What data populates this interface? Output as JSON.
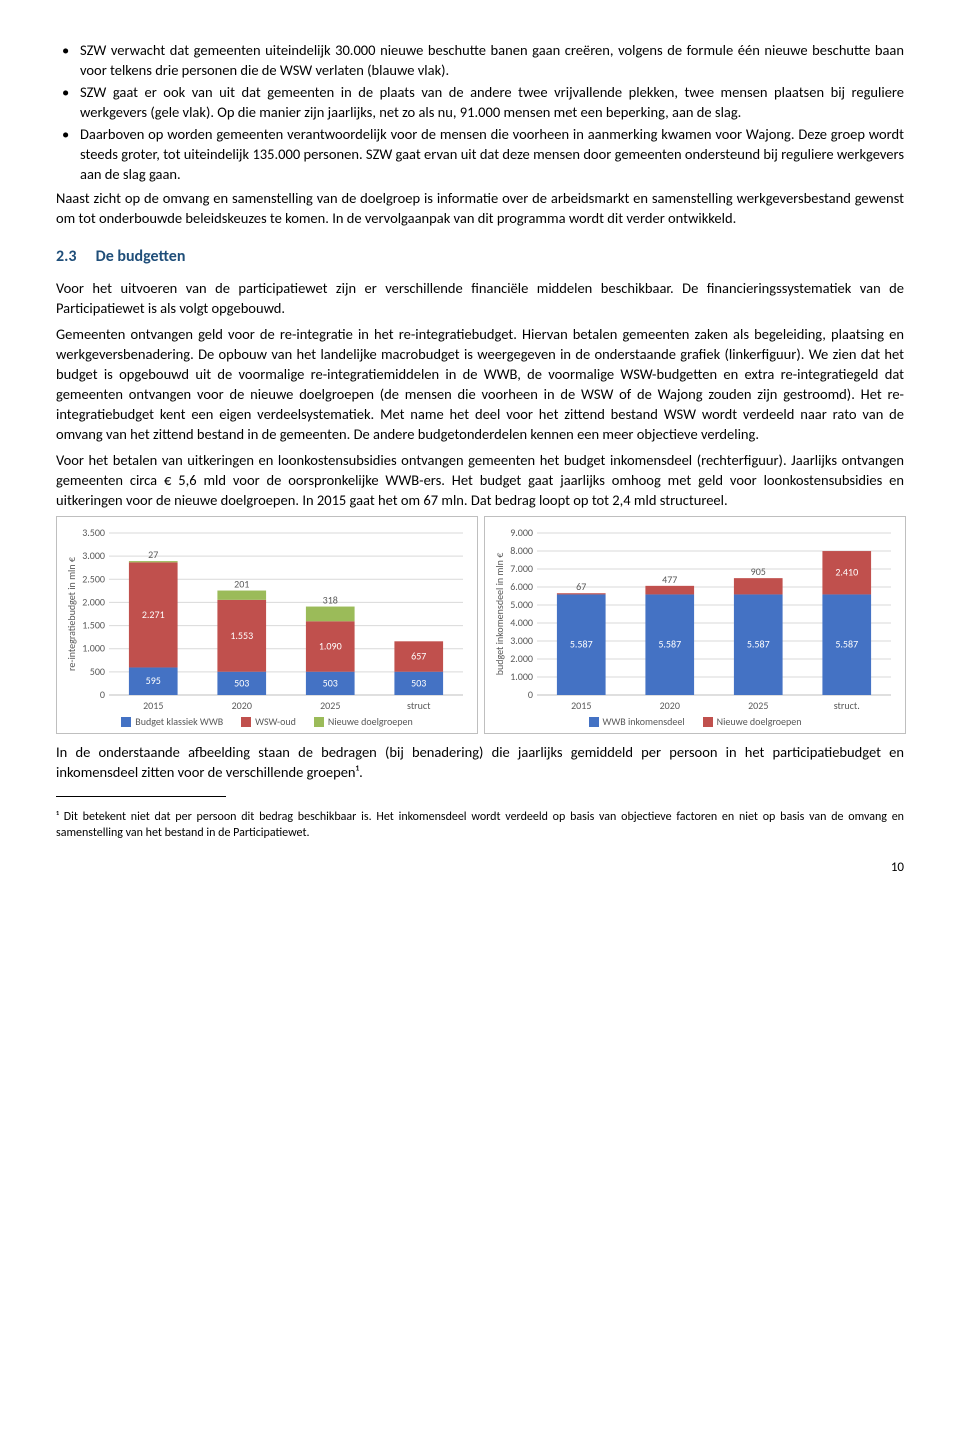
{
  "bullets": [
    "SZW verwacht dat gemeenten uiteindelijk 30.000 nieuwe beschutte banen gaan creëren, volgens de formule één nieuwe beschutte baan voor telkens drie personen die de WSW verlaten (blauwe vlak).",
    "SZW gaat er ook van uit dat gemeenten in de plaats van de andere twee vrijvallende plekken, twee mensen plaatsen bij reguliere werkgevers (gele vlak). Op die manier zijn jaarlijks, net zo als nu, 91.000 mensen met een beperking, aan de slag.",
    "Daarboven op worden gemeenten verantwoordelijk voor de mensen die voorheen in aanmerking kwamen voor Wajong. Deze groep wordt steeds groter, tot uiteindelijk 135.000 personen. SZW gaat ervan uit dat deze mensen door gemeenten ondersteund bij reguliere werkgevers aan de slag gaan."
  ],
  "after_bullets": "Naast zicht op de omvang en samenstelling van de doelgroep is informatie over de arbeidsmarkt en samenstelling werkgeversbestand gewenst om tot onderbouwde beleidskeuzes te komen. In de vervolgaanpak van dit programma wordt dit verder ontwikkeld.",
  "section": {
    "num": "2.3",
    "title": "De budgetten"
  },
  "paragraphs": [
    "Voor het uitvoeren van de participatiewet zijn er verschillende financiële middelen beschikbaar. De financieringssystematiek van de Participatiewet is als volgt opgebouwd.",
    "Gemeenten ontvangen geld voor de re-integratie in het re-integratiebudget. Hiervan betalen gemeenten zaken als begeleiding, plaatsing en werkgeversbenadering. De opbouw van het landelijke macrobudget is weergegeven in de onderstaande grafiek (linkerfiguur). We zien dat het budget is opgebouwd uit de voormalige re-integratiemiddelen in de WWB, de voormalige WSW-budgetten en extra re-integratiegeld dat gemeenten ontvangen voor de nieuwe doelgroepen (de mensen die voorheen in de WSW of de Wajong zouden zijn gestroomd). Het re-integratiebudget kent een eigen verdeelsystematiek. Met name het deel voor het zittend bestand WSW wordt verdeeld naar rato van de omvang van het zittend bestand in de gemeenten. De andere budgetonderdelen kennen een meer objectieve verdeling.",
    "Voor het betalen van uitkeringen en loonkostensubsidies ontvangen gemeenten het budget inkomensdeel (rechterfiguur). Jaarlijks ontvangen gemeenten circa € 5,6 mld voor de oorspronkelijke WWB-ers. Het budget gaat jaarlijks omhoog met geld voor loonkostensubsidies en uitkeringen voor de nieuwe doelgroepen. In 2015 gaat het om 67 mln. Dat bedrag loopt op tot 2,4 mld structureel."
  ],
  "after_charts": "In de onderstaande afbeelding staan de bedragen (bij benadering) die jaarlijks gemiddeld per persoon in het participatiebudget en inkomensdeel zitten voor de verschillende groepen¹.",
  "footnote": "¹ Dit betekent niet dat per persoon dit bedrag beschikbaar is. Het inkomensdeel wordt verdeeld op basis van objectieve factoren en niet op basis van de omvang en samenstelling van het bestand in de Participatiewet.",
  "pagenum": "10",
  "chart_left": {
    "type": "stacked-bar",
    "y_label": "re-integratiebudget in mln €",
    "categories": [
      "2015",
      "2020",
      "2025",
      "struct"
    ],
    "ylim": [
      0,
      3500
    ],
    "ytick_step": 500,
    "series": [
      {
        "name": "Budget klassiek WWB",
        "color": "#4472c4",
        "values": [
          595,
          503,
          503,
          503
        ],
        "labels": [
          "595",
          "503",
          "503",
          "503"
        ]
      },
      {
        "name": "WSW-oud",
        "color": "#c0504d",
        "values": [
          2271,
          1553,
          1090,
          657
        ],
        "labels": [
          "2.271",
          "1.553",
          "1.090",
          "657"
        ]
      },
      {
        "name": "Nieuwe doelgroepen",
        "color": "#9bbb59",
        "values": [
          27,
          201,
          318,
          0
        ],
        "labels": [
          "27",
          "201",
          "318",
          ""
        ]
      }
    ],
    "top_label_mode": "last_series_above",
    "grid_color": "#d9d9d9",
    "background": "#ffffff",
    "bar_width": 0.55
  },
  "chart_right": {
    "type": "stacked-bar",
    "y_label": "budget inkomensdeel in mln €",
    "categories": [
      "2015",
      "2020",
      "2025",
      "struct."
    ],
    "ylim": [
      0,
      9000
    ],
    "ytick_step": 1000,
    "series": [
      {
        "name": "WWB inkomensdeel",
        "color": "#4472c4",
        "values": [
          5587,
          5587,
          5587,
          5587
        ],
        "labels": [
          "5.587",
          "5.587",
          "5.587",
          "5.587"
        ]
      },
      {
        "name": "Nieuwe doelgroepen",
        "color": "#c0504d",
        "values": [
          67,
          477,
          905,
          2410
        ],
        "labels": [
          "67",
          "477",
          "905",
          "2.410"
        ]
      }
    ],
    "top_label_mode": "none_except_first_above",
    "grid_color": "#d9d9d9",
    "background": "#ffffff",
    "bar_width": 0.55
  }
}
